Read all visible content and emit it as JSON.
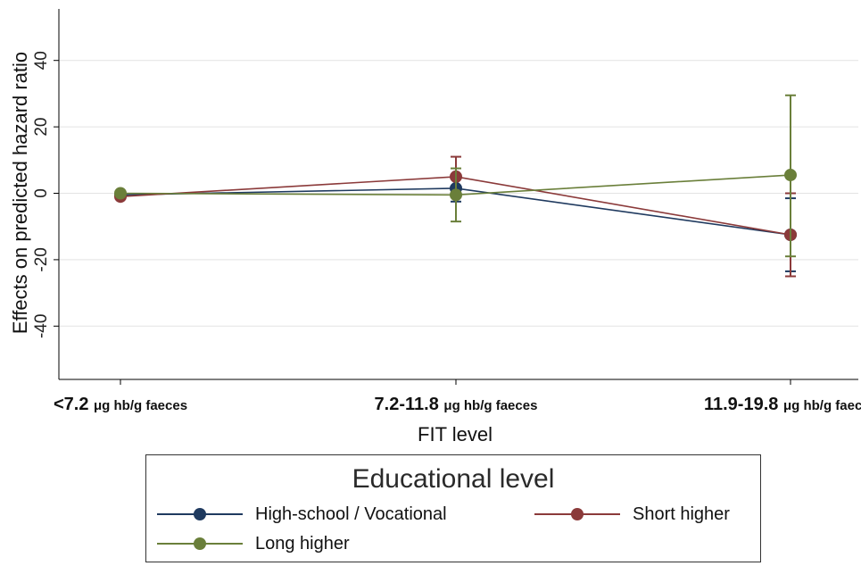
{
  "chart_data": {
    "type": "line",
    "xlabel": "FIT level",
    "ylabel": "Effects on predicted hazard ratio",
    "categories": [
      {
        "main": "<7.2",
        "unit": "μg hb/g faeces"
      },
      {
        "main": "7.2-11.8",
        "unit": "μg hb/g faeces"
      },
      {
        "main": "11.9-19.8",
        "unit": "μg hb/g faeces"
      }
    ],
    "yticks": [
      -40,
      -20,
      0,
      20,
      40
    ],
    "ylim": [
      -55,
      55
    ],
    "grid": true,
    "legend": {
      "title": "Educational level",
      "placement": "bottom"
    },
    "series": [
      {
        "name": "High-school / Vocational",
        "color": "#1f3a5f",
        "values": [
          -0.5,
          1.5,
          -12.5
        ],
        "lower": [
          -1.0,
          -2.5,
          -23.5
        ],
        "upper": [
          0.0,
          5.5,
          -1.5
        ]
      },
      {
        "name": "Short higher",
        "color": "#8b3a3a",
        "values": [
          -1.0,
          5.0,
          -12.5
        ],
        "lower": [
          -1.5,
          -1.0,
          -25.0
        ],
        "upper": [
          -0.5,
          11.0,
          0.0
        ]
      },
      {
        "name": "Long higher",
        "color": "#6a7f3a",
        "values": [
          0.0,
          -0.5,
          5.5
        ],
        "lower": [
          -0.5,
          -8.5,
          -19.0
        ],
        "upper": [
          0.5,
          7.5,
          29.5
        ]
      }
    ]
  }
}
